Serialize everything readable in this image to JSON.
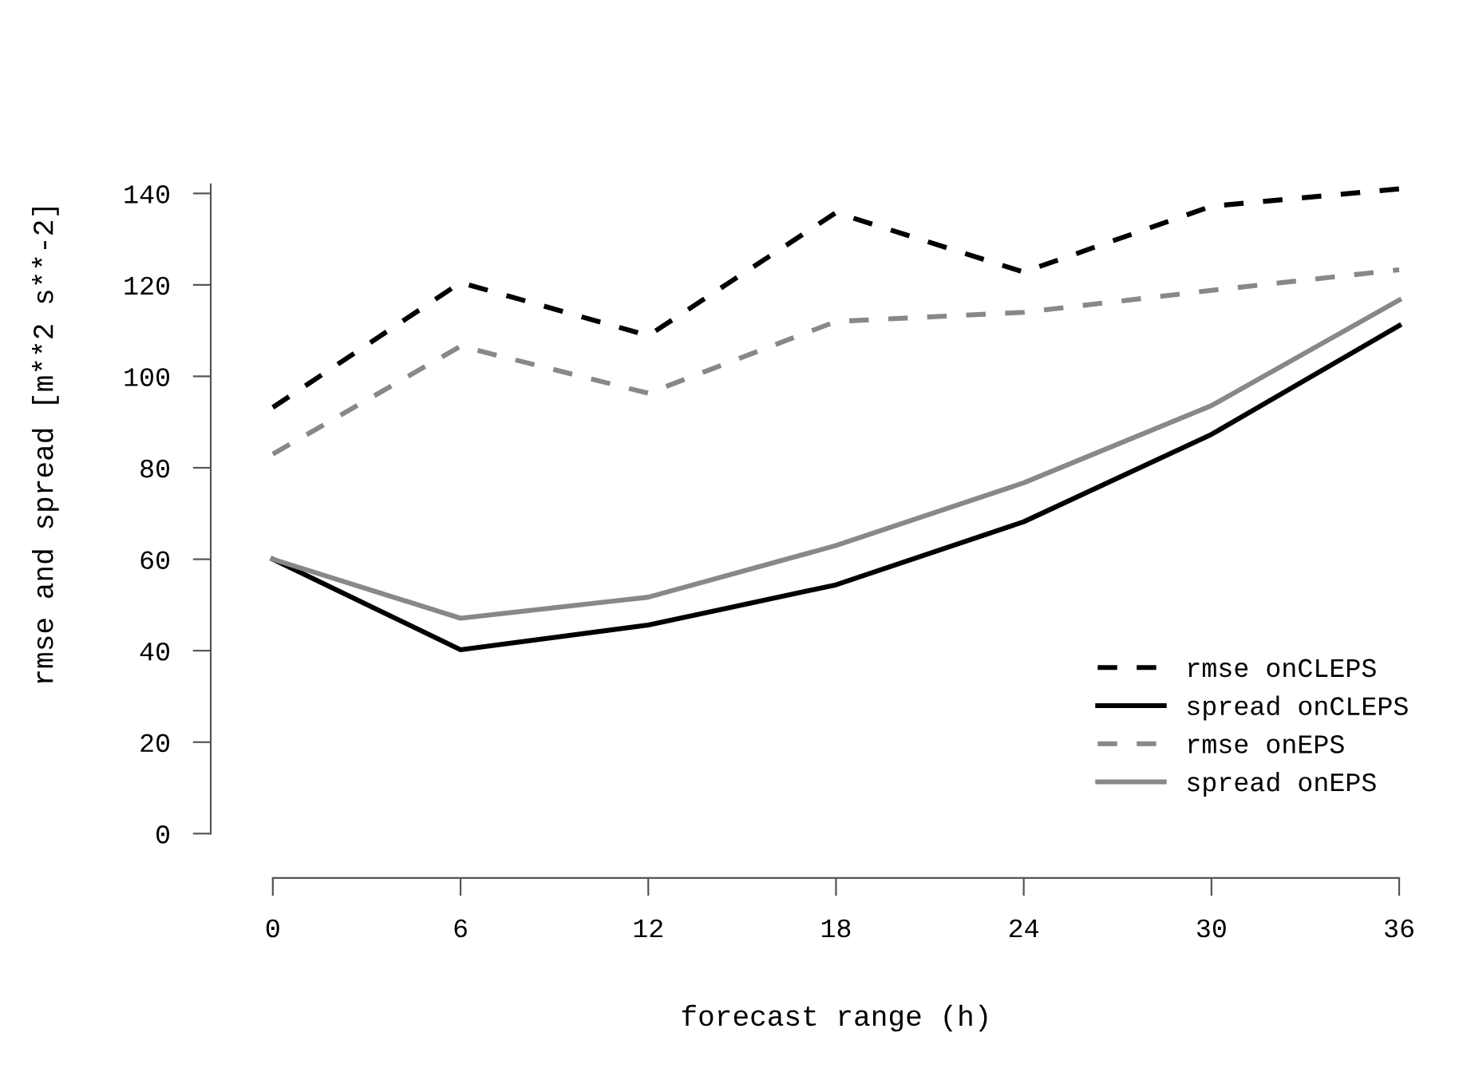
{
  "chart_data": {
    "type": "line",
    "xlabel": "forecast range (h)",
    "ylabel": "rmse and spread [m**2 s**-2]",
    "x": [
      0,
      6,
      12,
      18,
      24,
      30,
      36
    ],
    "series": [
      {
        "name": "rmse onCLEPS",
        "color": "#000000",
        "line_style": "dashed",
        "values": [
          93.2,
          120.5,
          108.9,
          135.8,
          122.8,
          137.2,
          141
        ]
      },
      {
        "name": "spread onCLEPS",
        "color": "#000000",
        "line_style": "solid",
        "values": [
          60,
          40.2,
          45.6,
          54.4,
          68.2,
          87.3,
          111.1
        ]
      },
      {
        "name": "rmse onEPS",
        "color": "#888888",
        "line_style": "dashed",
        "values": [
          83,
          106.6,
          96.3,
          112,
          114,
          118.8,
          123.3
        ]
      },
      {
        "name": "spread onEPS",
        "color": "#888888",
        "line_style": "solid",
        "values": [
          60,
          47.1,
          51.7,
          63,
          76.7,
          93.6,
          116.7
        ]
      }
    ],
    "xlim": [
      0,
      36
    ],
    "ylim": [
      0,
      142
    ],
    "xticks": [
      0,
      6,
      12,
      18,
      24,
      30,
      36
    ],
    "yticks": [
      0,
      20,
      40,
      60,
      80,
      100,
      120,
      140
    ],
    "grid": false,
    "legend": "bottom right",
    "marker": "none"
  }
}
